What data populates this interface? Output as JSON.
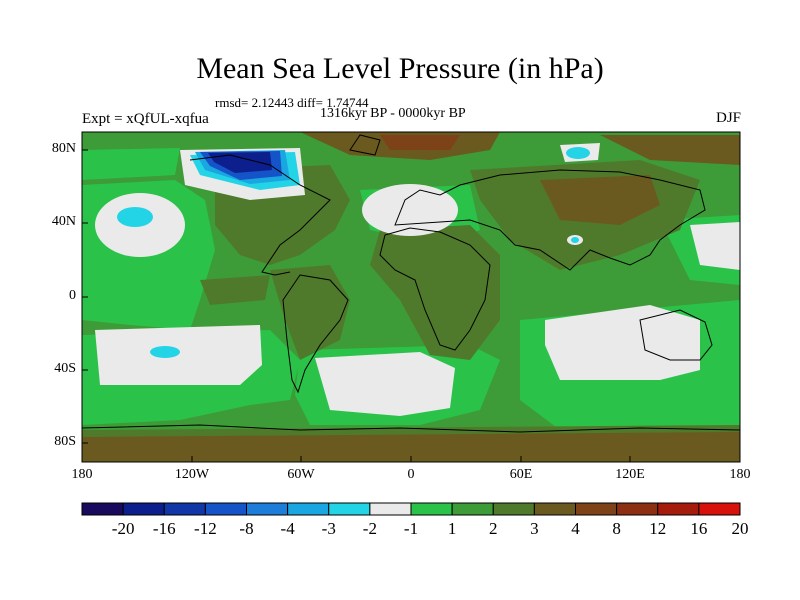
{
  "figure": {
    "title": "Mean Sea Level Pressure (in hPa)",
    "stats": "rmsd= 2.12443 diff= 1.74744",
    "period": "1316kyr BP - 0000kyr BP",
    "experiment": "Expt = xQfUL-xqfua",
    "season": "DJF"
  },
  "map_axes": {
    "lat_labels": [
      "80N",
      "40N",
      "0",
      "40S",
      "80S"
    ],
    "lon_labels": [
      "180",
      "120W",
      "60W",
      "0",
      "60E",
      "120E",
      "180"
    ]
  },
  "colorbar": {
    "labels": [
      "-20",
      "-16",
      "-12",
      "-8",
      "-4",
      "-3",
      "-2",
      "-1",
      "1",
      "2",
      "3",
      "4",
      "8",
      "12",
      "16",
      "20"
    ],
    "colors": [
      "#1a0a5e",
      "#0c1f8c",
      "#1036a8",
      "#1554c8",
      "#1d7dd8",
      "#1aa6e0",
      "#23d4e6",
      "#eaeaea",
      "#2bc24a",
      "#3d9c37",
      "#4f7a2b",
      "#6a5a20",
      "#7e4218",
      "#8c2f12",
      "#a51b0c",
      "#d8120a"
    ]
  }
}
